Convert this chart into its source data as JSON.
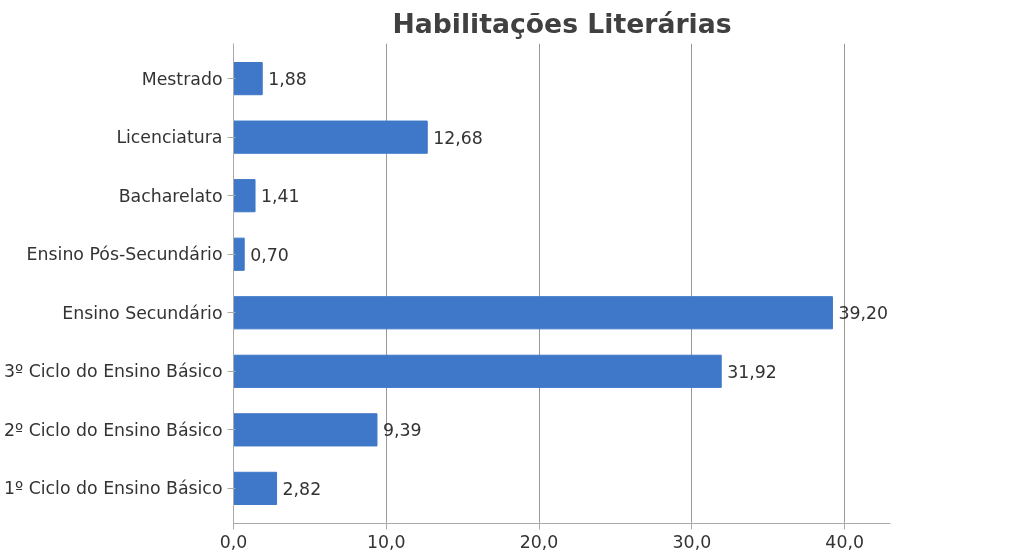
{
  "chart_data": {
    "type": "bar",
    "orientation": "horizontal",
    "title": "Habilitações Literárias",
    "categories": [
      "Mestrado",
      "Licenciatura",
      "Bacharelato",
      "Ensino Pós-Secundário",
      "Ensino Secundário",
      "3º Ciclo do Ensino Básico",
      "2º Ciclo do Ensino Básico",
      "1º Ciclo do Ensino Básico"
    ],
    "values": [
      1.88,
      12.68,
      1.41,
      0.7,
      39.2,
      31.92,
      9.39,
      2.82
    ],
    "value_labels": [
      "1,88",
      "12,68",
      "1,41",
      "0,70",
      "39,20",
      "31,92",
      "9,39",
      "2,82"
    ],
    "color": "#3f78c8",
    "xlim": [
      0,
      43
    ],
    "xticks": [
      {
        "value": 0,
        "label": "0,0"
      },
      {
        "value": 10,
        "label": "10,0"
      },
      {
        "value": 20,
        "label": "20,0"
      },
      {
        "value": 30,
        "label": "30,0"
      },
      {
        "value": 40,
        "label": "40,0"
      }
    ],
    "grid": "x"
  }
}
